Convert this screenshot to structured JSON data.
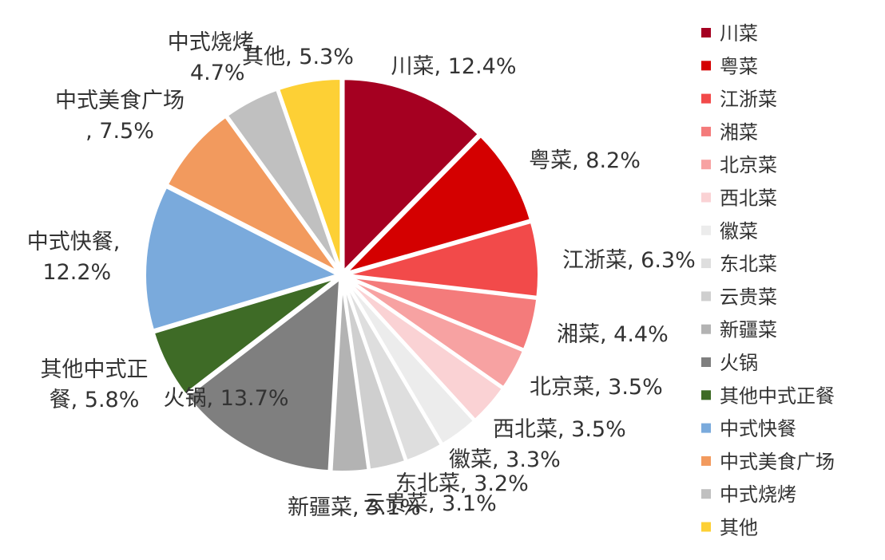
{
  "chart_data": {
    "type": "pie",
    "title": "",
    "legend_position": "right",
    "slices": [
      {
        "name": "川菜",
        "value": 12.4,
        "label": "川菜, 12.4%",
        "color": "#a50021"
      },
      {
        "name": "粤菜",
        "value": 8.2,
        "label": "粤菜, 8.2%",
        "color": "#d40000"
      },
      {
        "name": "江浙菜",
        "value": 6.3,
        "label": "江浙菜, 6.3%",
        "color": "#f24a4a"
      },
      {
        "name": "湘菜",
        "value": 4.4,
        "label": "湘菜, 4.4%",
        "color": "#f47b7b"
      },
      {
        "name": "北京菜",
        "value": 3.5,
        "label": "北京菜, 3.5%",
        "color": "#f7a2a2"
      },
      {
        "name": "西北菜",
        "value": 3.5,
        "label": "西北菜, 3.5%",
        "color": "#fad2d4"
      },
      {
        "name": "徽菜",
        "value": 3.3,
        "label": "徽菜, 3.3%",
        "color": "#ececec"
      },
      {
        "name": "东北菜",
        "value": 3.2,
        "label": "东北菜, 3.2%",
        "color": "#dedede"
      },
      {
        "name": "云贵菜",
        "value": 3.1,
        "label": "云贵菜, 3.1%",
        "color": "#cfcfcf"
      },
      {
        "name": "新疆菜",
        "value": 3.1,
        "label": "新疆菜, 3.1%",
        "color": "#b3b3b3"
      },
      {
        "name": "火锅",
        "value": 13.7,
        "label": "火锅, 13.7%",
        "color": "#7f7f7f"
      },
      {
        "name": "其他中式正餐",
        "value": 5.8,
        "label": "其他中式正餐, 5.8%",
        "color": "#3e6b26"
      },
      {
        "name": "中式快餐",
        "value": 12.2,
        "label": "中式快餐, 12.2%",
        "color": "#7aaadc"
      },
      {
        "name": "中式美食广场",
        "value": 7.5,
        "label": "中式美食广场, 7.5%",
        "color": "#f29a5e"
      },
      {
        "name": "中式烧烤",
        "value": 4.7,
        "label": "中式烧烤, 4.7%",
        "color": "#c0c0c0"
      },
      {
        "name": "其他",
        "value": 5.3,
        "label": "其他, 5.3%",
        "color": "#fdd035"
      }
    ]
  }
}
